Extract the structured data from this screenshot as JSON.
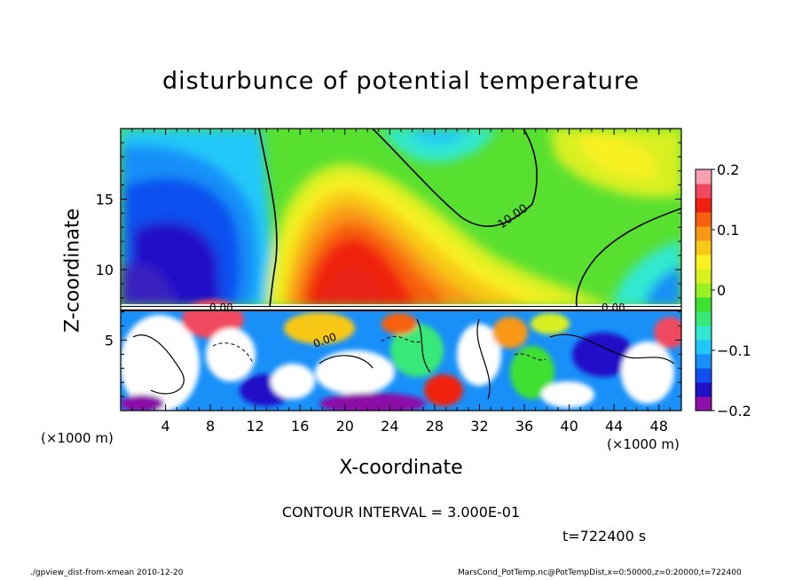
{
  "chart_data": {
    "type": "heatmap",
    "title": "disturbunce of potential temperature",
    "xlabel": "X-coordinate",
    "ylabel": "Z-coordinate",
    "x_unit_label": "(×1000 m)",
    "xlim": [
      0,
      50
    ],
    "ylim": [
      0,
      20
    ],
    "x_ticks": [
      "4",
      "8",
      "12",
      "16",
      "20",
      "24",
      "28",
      "32",
      "36",
      "40",
      "44",
      "48"
    ],
    "y_ticks": [
      "5",
      "10",
      "15"
    ],
    "colorbar": {
      "range": [
        -0.2,
        0.2
      ],
      "tick_labels": [
        "0.2",
        "0.1",
        "0",
        "−0.1",
        "−0.2"
      ],
      "colors": [
        "#8c10a8",
        "#2010c8",
        "#1050f0",
        "#1890f8",
        "#20c8f8",
        "#30e8d0",
        "#38e878",
        "#40e030",
        "#98f020",
        "#d8f020",
        "#f8f020",
        "#f8c818",
        "#f89818",
        "#f86010",
        "#f02010",
        "#f04860",
        "#f8a0b0"
      ]
    },
    "contour_labels": [
      "10.00",
      "0.00",
      "0.00",
      "0.00"
    ],
    "contour_interval_text": "CONTOUR INTERVAL = 3.000E-01",
    "time_text": "t=722400 s"
  },
  "footer": {
    "left": "./gpview_dist-from-xmean  2010-12-20",
    "right": "MarsCond_PotTemp.nc@PotTempDist,x=0:50000,z=0:20000,t=722400"
  }
}
